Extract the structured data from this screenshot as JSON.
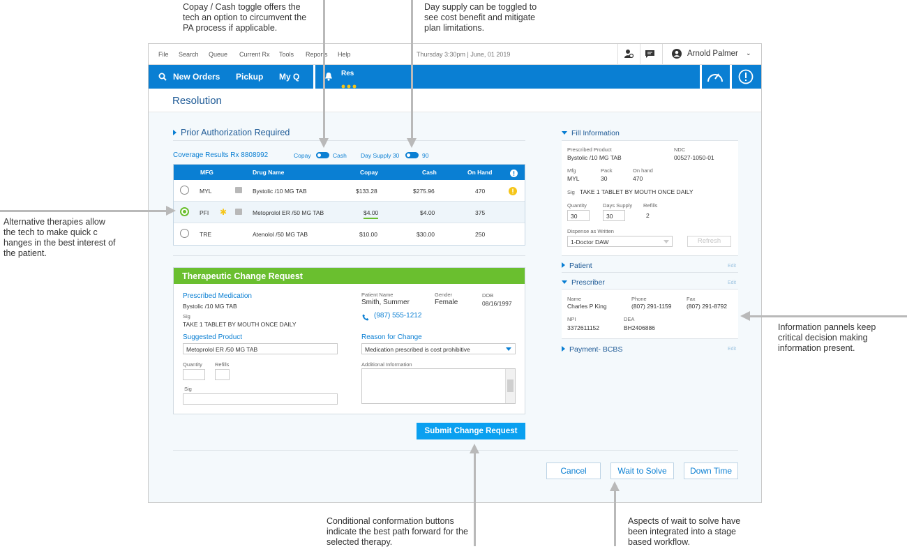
{
  "annotations": {
    "toggle_note": "Copay / Cash toggle offers the tech an option to circumvent the PA process if applicable.",
    "day_supply_note": "Day supply can be toggled to see cost benefit and mitigate plan limitations.",
    "alternative_note": "Alternative therapies allow the tech to make quick c hanges in the best interest of the patient.",
    "info_panel_note": "Information pannels keep critical decision making information present.",
    "conditional_note": "Conditional conformation buttons indicate the best path forward for the selected therapy.",
    "wait_note": "Aspects of wait to solve have been integrated into a stage based workflow."
  },
  "menu": {
    "items": [
      "File",
      "Search",
      "Queue",
      "Current Rx",
      "Tools",
      "Reports",
      "Help"
    ],
    "datetime": "Thursday 3:30pm  |  June, 01 2019",
    "user": "Arnold Palmer"
  },
  "nav": {
    "items": [
      "New Orders",
      "Pickup",
      "My Q"
    ],
    "res_label": "Res"
  },
  "page_title": "Resolution",
  "prior_auth": {
    "header": "Prior Authorization Required",
    "coverage": "Coverage Results Rx 8808992",
    "copay_label": "Copay",
    "cash_label": "Cash",
    "day_supply_label": "Day Supply 30",
    "day_supply_alt": "90",
    "columns": [
      "MFG",
      "Drug Name",
      "Copay",
      "Cash",
      "On Hand"
    ],
    "rows": [
      {
        "mfg": "MYL",
        "drug": "Bystolic /10 MG TAB",
        "copay": "$133.28",
        "cash": "$275.96",
        "on_hand": "470"
      },
      {
        "mfg": "PFI",
        "drug": "Metoprolol ER /50 MG TAB",
        "copay": "$4.00",
        "cash": "$4.00",
        "on_hand": "375"
      },
      {
        "mfg": "TRE",
        "drug": "Atenolol /50 MG TAB",
        "copay": "$10.00",
        "cash": "$30.00",
        "on_hand": "250"
      }
    ]
  },
  "tcr": {
    "header": "Therapeutic Change Request",
    "prescribed_label": "Prescribed Medication",
    "prescribed_value": "Bystolic /10 MG TAB",
    "sig_label": "Sig",
    "sig_value": "TAKE 1 TABLET BY MOUTH ONCE DAILY",
    "suggested_label": "Suggested Product",
    "suggested_value": "Metoprolol ER /50 MG TAB",
    "quantity_label": "Quantity",
    "refills_label": "Refills",
    "sig2_label": "Sig",
    "patient_name_label": "Patient Name",
    "patient_name": "Smith, Summer",
    "gender_label": "Gender",
    "gender": "Female",
    "dob_label": "DOB",
    "dob": "08/16/1997",
    "phone": "(987) 555-1212",
    "reason_label": "Reason for Change",
    "reason_value": "Medication prescribed is cost prohibitive",
    "additional_label": "Additional Information",
    "submit": "Submit Change Request"
  },
  "fill_info": {
    "header": "Fill Information",
    "prescribed_product_label": "Prescribed Product",
    "prescribed_product": "Bystolic /10 MG TAB",
    "ndc_label": "NDC",
    "ndc": "00527-1050-01",
    "mfg_label": "Mfg",
    "mfg": "MYL",
    "pack_label": "Pack",
    "pack": "30",
    "onhand_label": "On hand",
    "onhand": "470",
    "sig_label": "Sig",
    "sig": "TAKE 1 TABLET BY MOUTH ONCE DAILY",
    "quantity_label": "Quantity",
    "quantity": "30",
    "days_supply_label": "Days Supply",
    "days_supply": "30",
    "refills_label": "Refills",
    "refills": "2",
    "daw_label": "Dispense as Written",
    "daw_value": "1-Doctor DAW",
    "refresh": "Refresh"
  },
  "patient_panel": {
    "header": "Patient",
    "edit": "Edit"
  },
  "prescriber": {
    "header": "Prescriber",
    "edit": "Edit",
    "name_label": "Name",
    "name": "Charles P King",
    "phone_label": "Phone",
    "phone": "(807) 291-1159",
    "fax_label": "Fax",
    "fax": "(807) 291-8792",
    "npi_label": "NPI",
    "npi": "3372611152",
    "dea_label": "DEA",
    "dea": "BH2406886"
  },
  "payment": {
    "header": "Payment- BCBS",
    "edit": "Edit"
  },
  "actions": {
    "cancel": "Cancel",
    "wait": "Wait to Solve",
    "down": "Down Time"
  },
  "colors": {
    "primary": "#0a7fd3",
    "green": "#6abf2f",
    "submit": "#0aa0f0",
    "warning": "#f5c518"
  }
}
